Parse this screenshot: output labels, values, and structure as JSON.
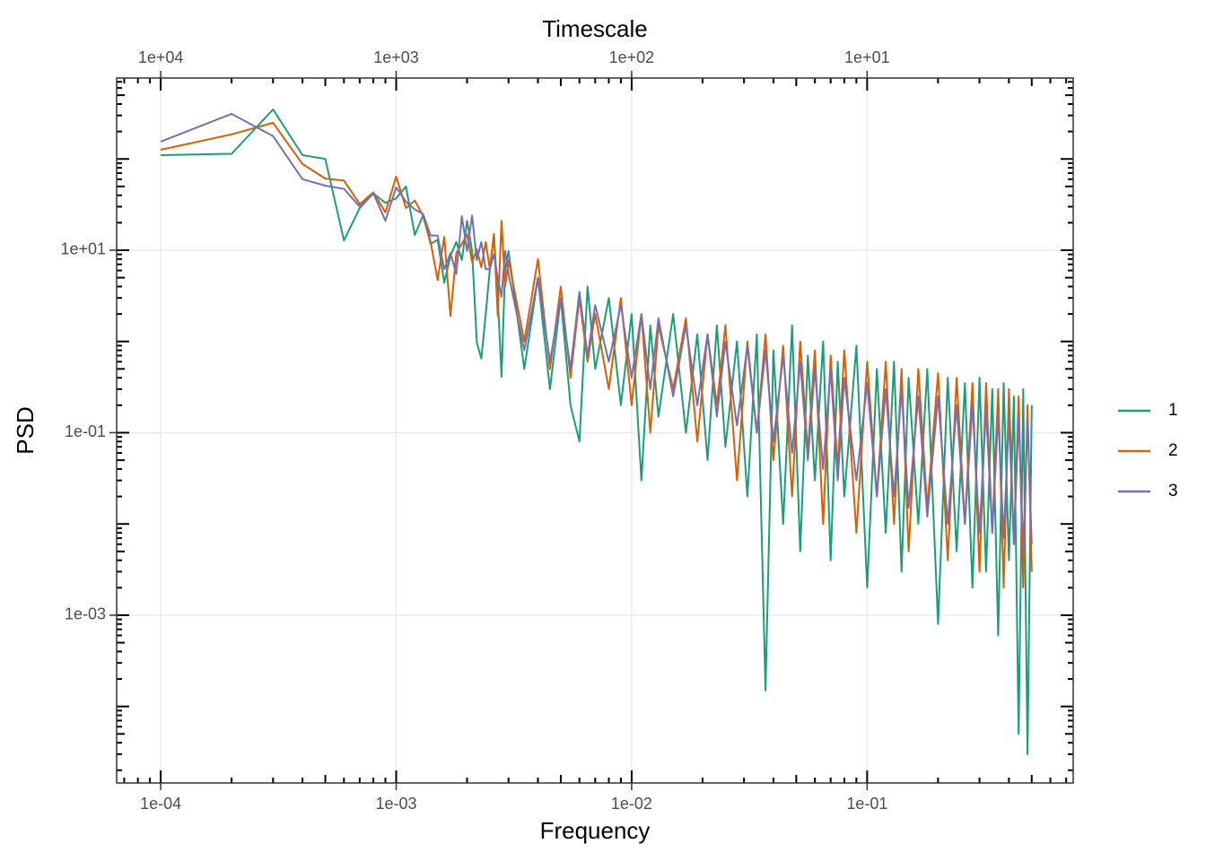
{
  "chart_data": {
    "type": "line",
    "title": "Timescale",
    "xlabel": "Frequency",
    "ylabel": "PSD",
    "log_x": true,
    "log_y": true,
    "grid": true,
    "legend": "right",
    "xlim": [
      6.5e-05,
      0.75
    ],
    "ylim": [
      1.45e-05,
      771
    ],
    "xticks": [
      {
        "value": 0.0001,
        "label": "1e-04"
      },
      {
        "value": 0.001,
        "label": "1e-03"
      },
      {
        "value": 0.01,
        "label": "1e-02"
      },
      {
        "value": 0.1,
        "label": "1e-01"
      }
    ],
    "x2lim": [
      15385,
      1.333
    ],
    "x2ticks": [
      {
        "value": 10000,
        "label": "1e+04"
      },
      {
        "value": 1000,
        "label": "1e+03"
      },
      {
        "value": 100,
        "label": "1e+02"
      },
      {
        "value": 10,
        "label": "1e+01"
      }
    ],
    "yticks": [
      {
        "value": 10,
        "label": "1e+01"
      },
      {
        "value": 0.1,
        "label": "1e-01"
      },
      {
        "value": 0.001,
        "label": "1e-03"
      }
    ],
    "x": [
      0.0001,
      0.0002,
      0.0003,
      0.0004,
      0.0005,
      0.0006,
      0.0007,
      0.0008,
      0.0009,
      0.001,
      0.0011,
      0.0012,
      0.0013,
      0.0014,
      0.0015,
      0.0016,
      0.0017,
      0.0018,
      0.0019,
      0.002,
      0.0021,
      0.0022,
      0.0023,
      0.0024,
      0.0025,
      0.0026,
      0.0027,
      0.0028,
      0.0029,
      0.003,
      0.0035,
      0.004,
      0.0045,
      0.005,
      0.0055,
      0.006,
      0.0065,
      0.007,
      0.008,
      0.009,
      0.01,
      0.011,
      0.012,
      0.013,
      0.015,
      0.017,
      0.019,
      0.021,
      0.023,
      0.025,
      0.028,
      0.031,
      0.034,
      0.037,
      0.04,
      0.044,
      0.048,
      0.052,
      0.056,
      0.06,
      0.065,
      0.07,
      0.075,
      0.08,
      0.09,
      0.1,
      0.11,
      0.12,
      0.13,
      0.14,
      0.15,
      0.165,
      0.18,
      0.2,
      0.22,
      0.24,
      0.26,
      0.28,
      0.3,
      0.32,
      0.34,
      0.36,
      0.38,
      0.4,
      0.42,
      0.44,
      0.46,
      0.48,
      0.5
    ],
    "series": [
      {
        "name": "1",
        "color": "#1b9e77",
        "values": [
          110,
          114,
          349,
          110,
          100,
          12.8,
          29,
          42,
          33,
          37,
          50,
          14.7,
          24,
          11.7,
          13,
          4.4,
          8.7,
          12.3,
          7.8,
          21,
          9.8,
          0.97,
          0.65,
          2,
          6.2,
          15,
          3.1,
          0.41,
          6.2,
          9.8,
          0.5,
          5,
          0.3,
          3,
          0.2,
          0.08,
          4,
          0.5,
          3,
          0.2,
          2,
          0.03,
          1.5,
          0.15,
          2,
          0.1,
          1.2,
          0.05,
          1.5,
          0.07,
          1,
          0.02,
          1.2,
          0.00015,
          0.8,
          0.01,
          1.5,
          0.005,
          0.7,
          0.03,
          1,
          0.004,
          0.6,
          0.02,
          0.9,
          0.002,
          0.5,
          0.008,
          0.6,
          0.003,
          0.4,
          0.01,
          0.5,
          0.0008,
          0.4,
          0.005,
          0.35,
          0.002,
          0.4,
          0.003,
          0.3,
          0.0006,
          0.35,
          0.004,
          0.25,
          5e-05,
          0.3,
          3e-05,
          0.2
        ]
      },
      {
        "name": "2",
        "color": "#d95f02",
        "values": [
          126,
          186,
          249,
          88,
          61,
          58,
          32,
          43,
          26,
          64,
          29,
          35,
          24,
          12.3,
          4.7,
          14,
          1.9,
          9.3,
          11.7,
          15,
          7.4,
          10.2,
          6.5,
          12.3,
          6.2,
          15,
          1.9,
          21,
          4,
          7.8,
          1,
          8,
          0.5,
          4,
          0.4,
          3,
          0.6,
          2,
          0.3,
          3,
          0.2,
          2,
          0.1,
          1.5,
          0.3,
          1.8,
          0.08,
          1.2,
          0.2,
          1.5,
          0.03,
          1,
          0.1,
          1.2,
          0.05,
          0.9,
          0.02,
          1,
          0.06,
          0.8,
          0.01,
          0.7,
          0.04,
          0.8,
          0.008,
          0.6,
          0.02,
          0.6,
          0.01,
          0.5,
          0.005,
          0.5,
          0.015,
          0.45,
          0.004,
          0.4,
          0.01,
          0.35,
          0.003,
          0.35,
          0.008,
          0.3,
          0.002,
          0.3,
          0.006,
          0.25,
          0.002,
          0.2,
          0.003
        ]
      },
      {
        "name": "3",
        "color": "#7570b3",
        "values": [
          155,
          312,
          178,
          60,
          51,
          47,
          30,
          42,
          21,
          49,
          34,
          28,
          25,
          14.5,
          14.5,
          6.2,
          9.3,
          5.5,
          23.6,
          9.8,
          24,
          7.8,
          12.3,
          6.2,
          6.2,
          9.1,
          5,
          3.1,
          9.8,
          5.5,
          0.8,
          5,
          0.6,
          3,
          0.5,
          3.5,
          0.7,
          2.5,
          0.6,
          2.5,
          0.4,
          2,
          0.3,
          1.8,
          0.25,
          1.5,
          0.2,
          1.2,
          0.15,
          1,
          0.12,
          0.9,
          0.1,
          0.8,
          0.08,
          0.7,
          0.06,
          0.6,
          0.05,
          0.5,
          0.04,
          0.5,
          0.03,
          0.4,
          0.03,
          0.35,
          0.02,
          0.3,
          0.02,
          0.3,
          0.015,
          0.25,
          0.012,
          0.25,
          0.01,
          0.2,
          0.01,
          0.2,
          0.008,
          0.18,
          0.008,
          0.16,
          0.007,
          0.15,
          0.006,
          0.15,
          0.005,
          0.14,
          0.006
        ]
      }
    ]
  }
}
